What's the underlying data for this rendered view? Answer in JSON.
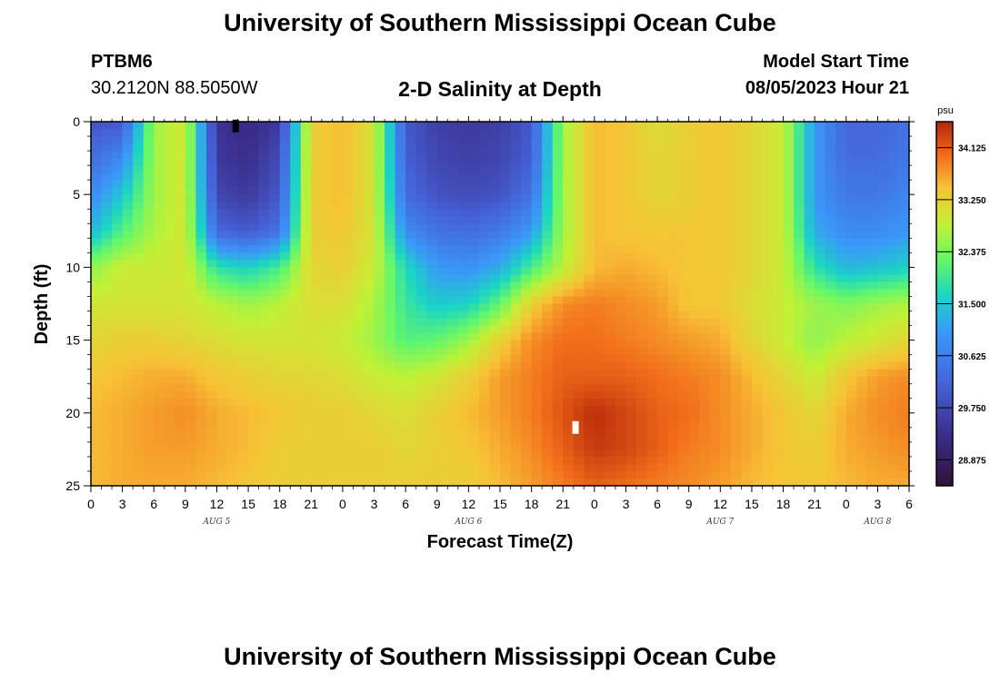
{
  "header": {
    "title": "University of Southern Mississippi Ocean Cube",
    "station": "PTBM6",
    "coords": "30.2120N  88.5050W",
    "plot_title": "2-D Salinity at Depth",
    "start_label": "Model Start Time",
    "start_value": "08/05/2023 Hour 21"
  },
  "footer": {
    "title": "University of Southern Mississippi Ocean Cube"
  },
  "chart_data": {
    "type": "heatmap",
    "title": "2-D Salinity at Depth",
    "xlabel": "Forecast Time(Z)",
    "ylabel": "Depth (ft)",
    "x_unit": "hours from Aug 5 00Z",
    "xlim": [
      0,
      78
    ],
    "ylim": [
      0,
      25
    ],
    "x_ticks": [
      0,
      3,
      6,
      9,
      12,
      15,
      18,
      21,
      24,
      27,
      30,
      33,
      36,
      39,
      42,
      45,
      48,
      51,
      54,
      57,
      60,
      63,
      66,
      69,
      72,
      75,
      78
    ],
    "x_tick_labels": [
      "0",
      "3",
      "6",
      "9",
      "12",
      "15",
      "18",
      "21",
      "0",
      "3",
      "6",
      "9",
      "12",
      "15",
      "18",
      "21",
      "0",
      "3",
      "6",
      "9",
      "12",
      "15",
      "18",
      "21",
      "0",
      "3",
      "6"
    ],
    "day_labels": [
      {
        "x": 12,
        "label": "AUG 5"
      },
      {
        "x": 36,
        "label": "AUG 6"
      },
      {
        "x": 60,
        "label": "AUG 7"
      },
      {
        "x": 75,
        "label": "AUG 8"
      }
    ],
    "y_ticks": [
      0,
      5,
      10,
      15,
      20,
      25
    ],
    "y_tick_labels": [
      "0",
      "5",
      "10",
      "15",
      "20",
      "25"
    ],
    "colorbar": {
      "unit": "psu",
      "min": 28.4375,
      "max": 34.5625,
      "tick_values": [
        34.125,
        33.25,
        32.375,
        31.5,
        30.625,
        29.75,
        28.875
      ],
      "tick_labels": [
        "34.125",
        "33.250",
        "32.375",
        "31.500",
        "30.625",
        "29.750",
        "28.875"
      ]
    },
    "grid": {
      "description": "Salinity (psu), each row = depth 0..25 ft step 2.5 ft; each column = forecast hour 0..78 step 3 h",
      "depths_ft": [
        0,
        2.5,
        5,
        7.5,
        10,
        12.5,
        15,
        17.5,
        20,
        22.5,
        25
      ],
      "hours": [
        0,
        3,
        6,
        9,
        12,
        15,
        18,
        21,
        24,
        27,
        30,
        33,
        36,
        39,
        42,
        45,
        48,
        51,
        54,
        57,
        60,
        63,
        66,
        69,
        72,
        75,
        78
      ],
      "values": [
        [
          29.9,
          30.0,
          32.6,
          33.0,
          29.4,
          29.2,
          29.5,
          33.3,
          33.5,
          33.0,
          30.0,
          29.6,
          29.5,
          29.6,
          30.0,
          32.6,
          33.5,
          33.4,
          33.1,
          33.3,
          33.4,
          33.2,
          32.9,
          31.0,
          30.2,
          30.2,
          30.4
        ],
        [
          30.3,
          30.8,
          32.6,
          33.0,
          29.5,
          29.3,
          29.8,
          33.3,
          33.5,
          33.0,
          30.1,
          29.7,
          29.6,
          29.7,
          30.1,
          32.6,
          33.5,
          33.4,
          33.2,
          33.3,
          33.4,
          33.2,
          32.9,
          31.0,
          30.3,
          30.3,
          30.5
        ],
        [
          30.8,
          31.5,
          32.6,
          33.0,
          29.7,
          29.5,
          30.0,
          33.3,
          33.5,
          33.0,
          30.3,
          29.9,
          29.8,
          29.9,
          30.4,
          32.6,
          33.5,
          33.4,
          33.2,
          33.3,
          33.4,
          33.2,
          32.9,
          31.0,
          30.5,
          30.5,
          30.7
        ],
        [
          31.3,
          32.1,
          32.7,
          33.0,
          30.2,
          30.0,
          30.4,
          33.3,
          33.4,
          33.0,
          30.8,
          30.4,
          30.3,
          30.5,
          31.0,
          32.6,
          33.5,
          33.4,
          33.4,
          33.4,
          33.4,
          33.2,
          32.9,
          31.2,
          30.8,
          30.8,
          31.0
        ],
        [
          32.5,
          32.9,
          32.9,
          33.0,
          31.8,
          31.6,
          32.0,
          33.2,
          33.3,
          32.9,
          31.7,
          31.0,
          30.9,
          31.2,
          32.0,
          32.8,
          33.5,
          33.6,
          33.5,
          33.4,
          33.4,
          33.2,
          32.9,
          31.8,
          31.3,
          31.4,
          31.6
        ],
        [
          33.0,
          33.0,
          33.0,
          33.0,
          32.8,
          32.6,
          32.8,
          33.1,
          33.1,
          32.7,
          31.9,
          31.5,
          31.6,
          32.2,
          33.3,
          33.8,
          33.9,
          33.8,
          33.7,
          33.4,
          33.4,
          33.1,
          32.9,
          32.6,
          32.4,
          32.6,
          32.7
        ],
        [
          33.2,
          33.3,
          33.3,
          33.2,
          33.1,
          33.0,
          33.0,
          33.0,
          32.9,
          32.6,
          32.1,
          32.2,
          32.6,
          33.3,
          33.8,
          34.0,
          34.0,
          33.9,
          33.8,
          33.7,
          33.6,
          33.2,
          32.9,
          32.5,
          32.8,
          33.0,
          33.2
        ],
        [
          33.4,
          33.5,
          33.6,
          33.6,
          33.4,
          33.3,
          33.2,
          33.2,
          33.1,
          32.9,
          32.8,
          33.0,
          33.3,
          33.7,
          33.9,
          34.1,
          34.1,
          34.1,
          34.0,
          33.9,
          33.8,
          33.5,
          33.2,
          32.9,
          33.4,
          33.7,
          33.8
        ],
        [
          33.5,
          33.6,
          33.7,
          33.8,
          33.6,
          33.5,
          33.4,
          33.3,
          33.3,
          33.2,
          33.1,
          33.3,
          33.5,
          33.7,
          33.9,
          34.2,
          34.5,
          34.3,
          34.1,
          34.0,
          33.8,
          33.6,
          33.4,
          33.2,
          33.6,
          33.8,
          33.9
        ],
        [
          33.5,
          33.6,
          33.7,
          33.7,
          33.6,
          33.5,
          33.3,
          33.3,
          33.3,
          33.3,
          33.2,
          33.3,
          33.4,
          33.6,
          33.8,
          34.1,
          34.4,
          34.3,
          34.1,
          33.9,
          33.8,
          33.6,
          33.4,
          33.3,
          33.6,
          33.7,
          33.8
        ],
        [
          33.5,
          33.6,
          33.6,
          33.6,
          33.5,
          33.4,
          33.3,
          33.3,
          33.3,
          33.3,
          33.3,
          33.3,
          33.3,
          33.5,
          33.7,
          33.9,
          34.1,
          34.0,
          33.9,
          33.8,
          33.7,
          33.5,
          33.4,
          33.4,
          33.5,
          33.6,
          33.6
        ]
      ]
    },
    "markers": [
      {
        "x": 13.8,
        "y": 0.3,
        "color": "#000000"
      },
      {
        "x": 46.2,
        "y": 21.0,
        "color": "#ffffff"
      }
    ]
  }
}
